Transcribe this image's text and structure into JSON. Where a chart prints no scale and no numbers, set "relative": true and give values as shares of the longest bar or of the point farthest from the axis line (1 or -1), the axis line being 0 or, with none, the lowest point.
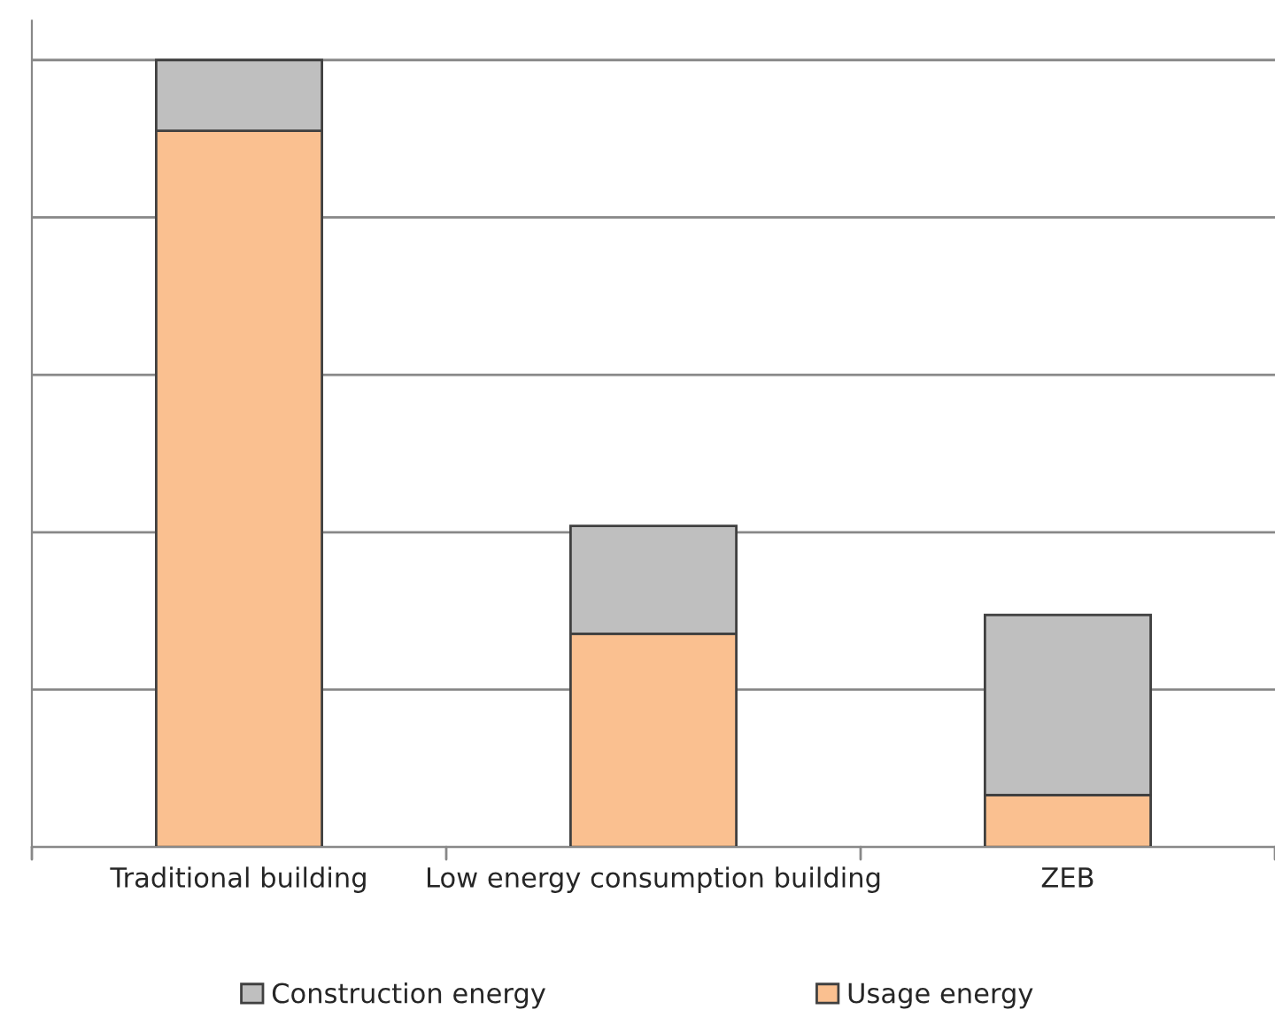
{
  "chart_data": {
    "type": "bar",
    "stacked": true,
    "relative": true,
    "categories": [
      "Traditional building",
      "Low energy consumption building",
      "ZEB"
    ],
    "series": [
      {
        "name": "Usage energy",
        "color": "#fac090",
        "values": [
          0.91,
          0.271,
          0.066
        ]
      },
      {
        "name": "Construction energy",
        "color": "#bfbfbf",
        "values": [
          0.09,
          0.137,
          0.229
        ]
      }
    ],
    "grid": "y",
    "legend": "bottom"
  }
}
